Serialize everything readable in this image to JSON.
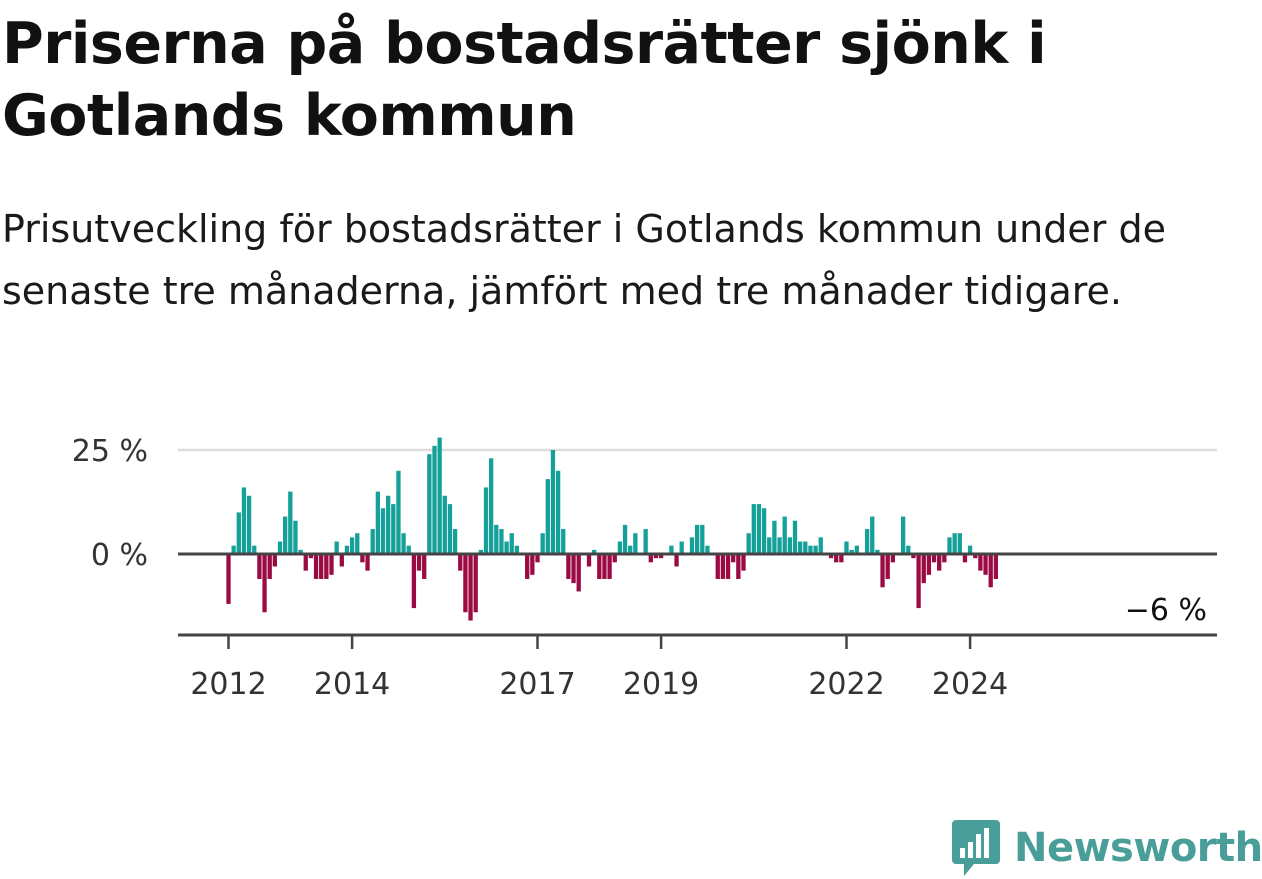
{
  "title": "Priserna på bostadsrätter sjönk i Gotlands kommun",
  "subtitle": "Prisutveckling för bostadsrätter i Gotlands kommun under de senaste tre månaderna, jämfört med tre månader tidigare.",
  "brand": {
    "name": "Newsworthy",
    "icon": "newsworthy-logo-icon",
    "color": "#4a9e9a"
  },
  "colors": {
    "positive": "#16a09a",
    "negative": "#9b0a42",
    "axis": "#444444",
    "grid": "#dddddd"
  },
  "chart_data": {
    "type": "bar",
    "x_start": "2012-01",
    "x_step": "month",
    "values": [
      -12,
      2,
      10,
      16,
      14,
      2,
      -6,
      -14,
      -6,
      -3,
      3,
      9,
      15,
      8,
      1,
      -4,
      -1,
      -6,
      -6,
      -6,
      -5,
      3,
      -3,
      2,
      4,
      5,
      -2,
      -4,
      6,
      15,
      11,
      14,
      12,
      20,
      5,
      2,
      -13,
      -4,
      -6,
      24,
      26,
      28,
      14,
      12,
      6,
      -4,
      -14,
      -16,
      -14,
      1,
      16,
      23,
      7,
      6,
      3,
      5,
      2,
      0,
      -6,
      -5,
      -2,
      5,
      18,
      25,
      20,
      6,
      -6,
      -7,
      -9,
      0,
      -3,
      1,
      -6,
      -6,
      -6,
      -2,
      3,
      7,
      2,
      5,
      0,
      6,
      -2,
      -1,
      -1,
      0,
      2,
      -3,
      3,
      0,
      4,
      7,
      7,
      2,
      0,
      -6,
      -6,
      -6,
      -2,
      -6,
      -4,
      5,
      12,
      12,
      11,
      4,
      8,
      4,
      9,
      4,
      8,
      3,
      3,
      2,
      2,
      4,
      0,
      -1,
      -2,
      -2,
      3,
      1,
      2,
      0,
      6,
      9,
      1,
      -8,
      -6,
      -2,
      0,
      9,
      2,
      -1,
      -13,
      -7,
      -5,
      -2,
      -4,
      -2,
      4,
      5,
      5,
      -2,
      2,
      -1,
      -4,
      -5,
      -8,
      -6
    ],
    "yticks": [
      0,
      25
    ],
    "ytick_labels": [
      "0 %",
      "25 %"
    ],
    "ylim": [
      -18,
      27
    ],
    "xticks": [
      "2012-01",
      "2014-01",
      "2017-01",
      "2019-01",
      "2022-01",
      "2024-01"
    ],
    "xtick_labels": [
      "2012",
      "2014",
      "2017",
      "2019",
      "2022",
      "2024"
    ],
    "end_label": "−6 %",
    "grid": true
  }
}
